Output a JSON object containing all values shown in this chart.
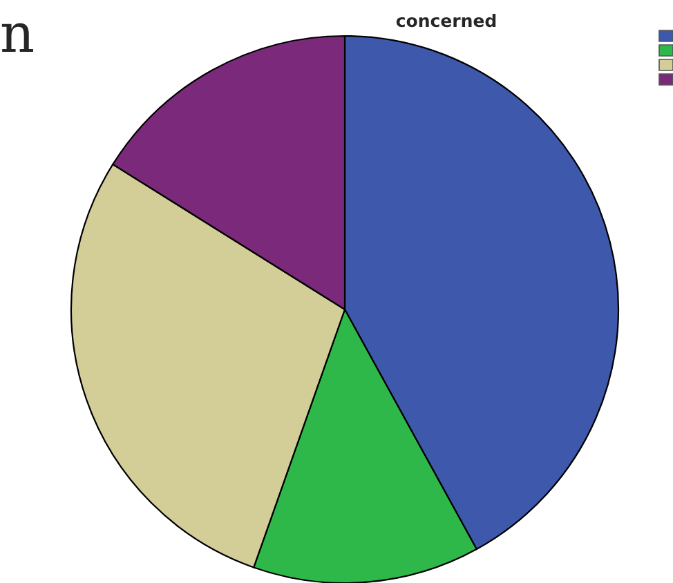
{
  "chart_data": {
    "type": "pie",
    "legend_title": "concerned",
    "annotations": [
      "n"
    ],
    "categories": [
      null,
      null,
      null,
      null
    ],
    "values": [
      42,
      13.4,
      28.5,
      16.1
    ],
    "colors": [
      "#3e58ac",
      "#2fb84a",
      "#d3cd98",
      "#7b2a7b"
    ]
  }
}
